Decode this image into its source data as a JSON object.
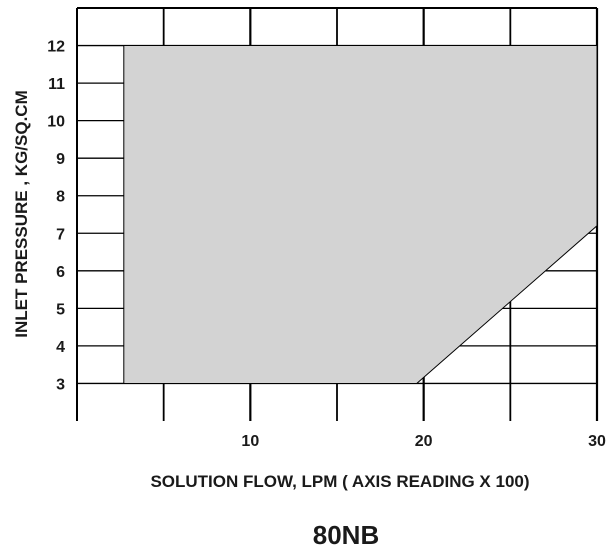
{
  "chart_data": {
    "type": "area",
    "title": "80NB",
    "xlabel": "SOLUTION FLOW, LPM ( AXIS READING X 100)",
    "ylabel": "INLET PRESSURE , KG/SQ.CM",
    "xlim": [
      0,
      30
    ],
    "ylim": [
      2,
      13
    ],
    "x_tick_labels": [
      "10",
      "20",
      "30"
    ],
    "x_tick_values": [
      10,
      20,
      30
    ],
    "y_tick_labels": [
      "3",
      "4",
      "5",
      "6",
      "7",
      "8",
      "9",
      "10",
      "11",
      "12"
    ],
    "y_tick_values": [
      3,
      4,
      5,
      6,
      7,
      8,
      9,
      10,
      11,
      12
    ],
    "grid": true,
    "operating_region": {
      "points": [
        {
          "x": 2.7,
          "y": 3
        },
        {
          "x": 19.6,
          "y": 3
        },
        {
          "x": 30,
          "y": 7.2
        },
        {
          "x": 30,
          "y": 12
        },
        {
          "x": 2.7,
          "y": 12
        }
      ],
      "fill_color": "#d3d3d3"
    },
    "colors": {
      "grid": "#000000",
      "fill": "#d3d3d3",
      "text": "#1a1a1a"
    }
  }
}
